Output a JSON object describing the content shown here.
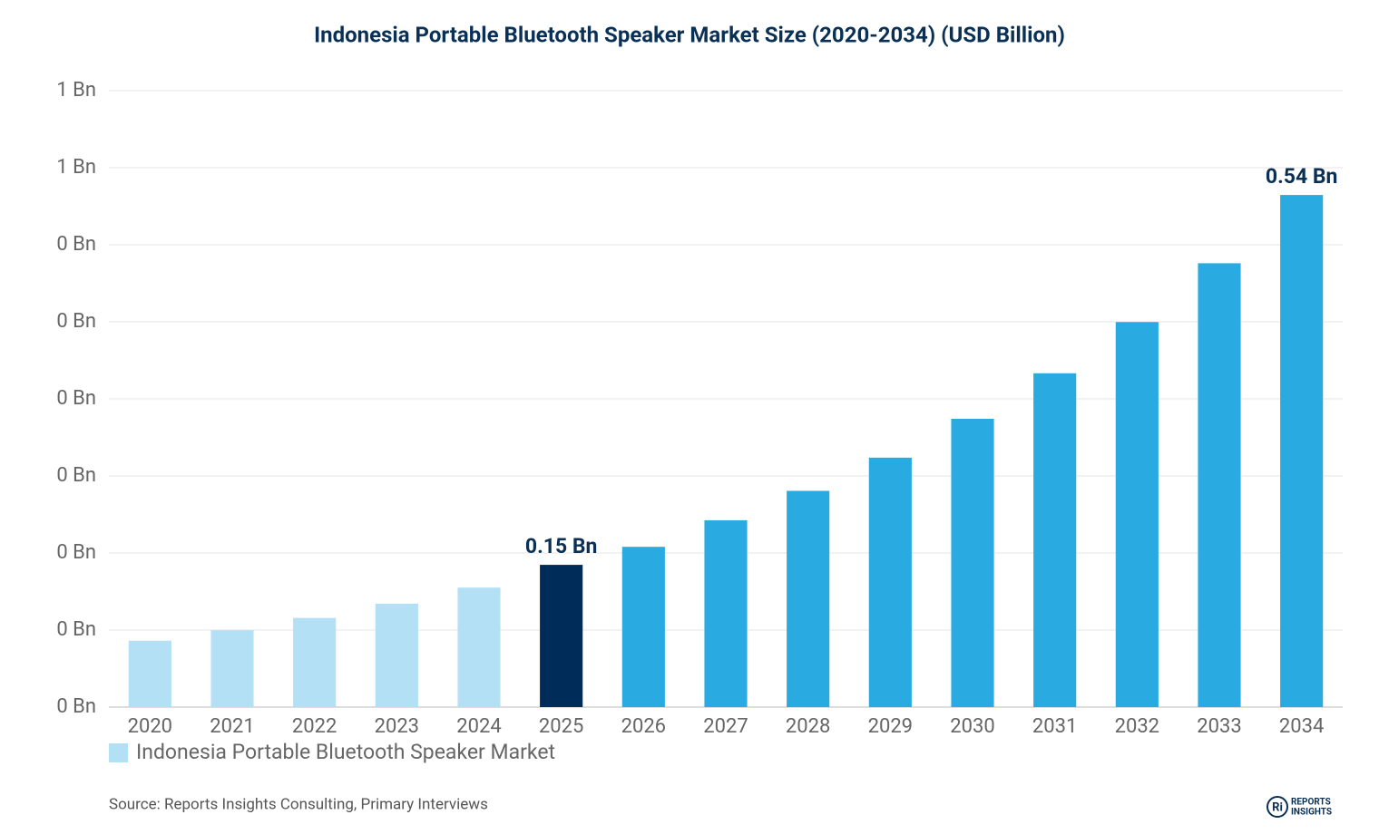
{
  "chart_data": {
    "type": "bar",
    "title": "Indonesia Portable Bluetooth Speaker Market Size (2020-2034) (USD Billion)",
    "categories": [
      "2020",
      "2021",
      "2022",
      "2023",
      "2024",
      "2025",
      "2026",
      "2027",
      "2028",
      "2029",
      "2030",
      "2031",
      "2032",
      "2033",
      "2034"
    ],
    "series": [
      {
        "name": "Indonesia Portable Bluetooth Speaker Market",
        "color": "#b3e0f5",
        "colors": [
          "#b3e0f5",
          "#b3e0f5",
          "#b3e0f5",
          "#b3e0f5",
          "#b3e0f5",
          "#002c5a",
          "#29abe2",
          "#29abe2",
          "#29abe2",
          "#29abe2",
          "#29abe2",
          "#29abe2",
          "#29abe2",
          "#29abe2",
          "#29abe2"
        ],
        "values": [
          0.07,
          0.081,
          0.094,
          0.109,
          0.126,
          0.15,
          0.169,
          0.197,
          0.228,
          0.263,
          0.304,
          0.352,
          0.406,
          0.468,
          0.54
        ],
        "value_labels": [
          null,
          null,
          null,
          null,
          null,
          "0.15 Bn",
          null,
          null,
          null,
          null,
          null,
          null,
          null,
          null,
          "0.54 Bn"
        ]
      }
    ],
    "ylim": [
      0,
      0.65
    ],
    "yticks": [
      {
        "value": 0,
        "label": "0 Bn"
      },
      {
        "value": 0.08125,
        "label": "0 Bn"
      },
      {
        "value": 0.1625,
        "label": "0 Bn"
      },
      {
        "value": 0.24375,
        "label": "0 Bn"
      },
      {
        "value": 0.325,
        "label": "0 Bn"
      },
      {
        "value": 0.40625,
        "label": "0 Bn"
      },
      {
        "value": 0.4875,
        "label": "0 Bn"
      },
      {
        "value": 0.56875,
        "label": "1 Bn"
      },
      {
        "value": 0.65,
        "label": "1 Bn"
      }
    ],
    "grid": true,
    "source": "Source: Reports Insights Consulting, Primary Interviews",
    "logo": {
      "mark": "Ri",
      "line1": "REPORTS",
      "line2": "INSIGHTS"
    }
  }
}
